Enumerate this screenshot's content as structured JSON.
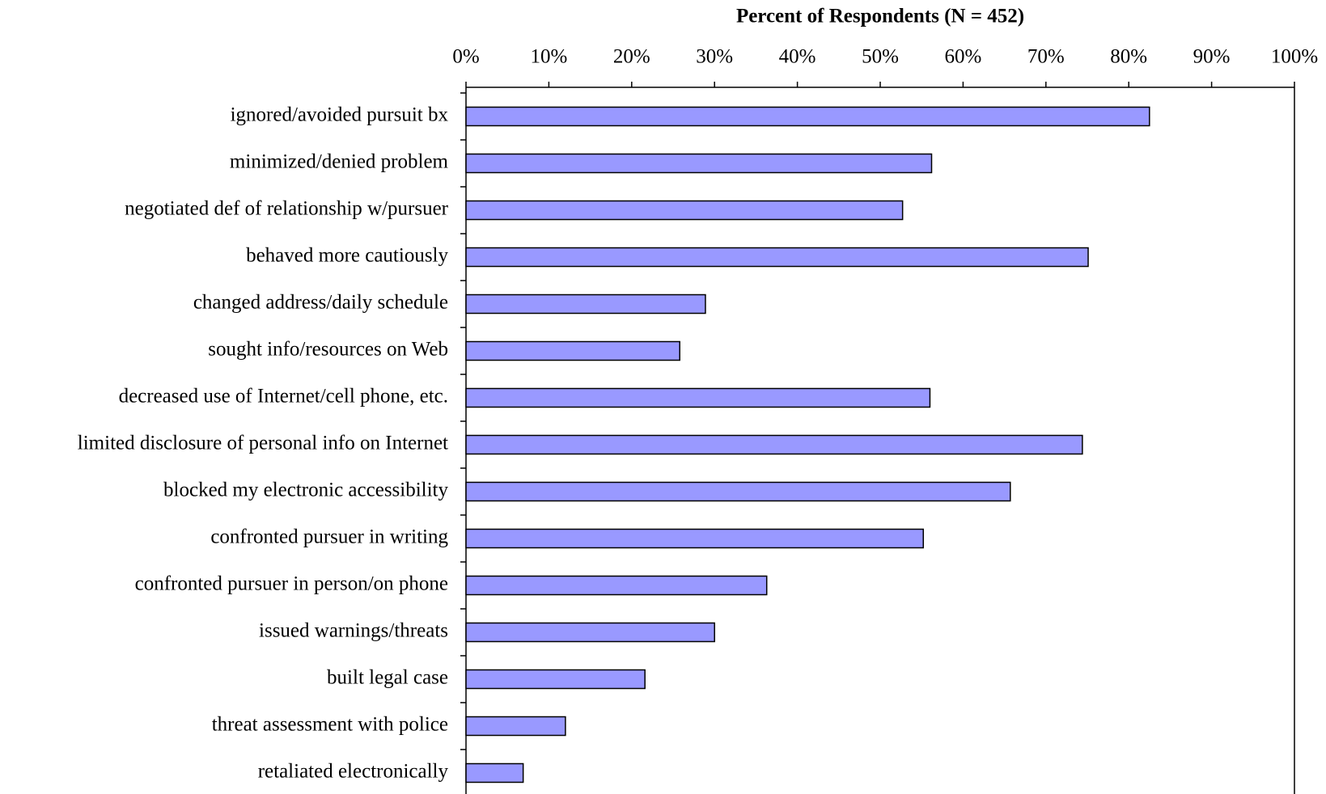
{
  "chart_data": {
    "type": "bar",
    "orientation": "horizontal",
    "title": "Percent of Respondents (N = 452)",
    "categories": [
      "ignored/avoided pursuit bx",
      "minimized/denied problem",
      "negotiated def of relationship w/pursuer",
      "behaved more cautiously",
      "changed address/daily schedule",
      "sought info/resources on Web",
      "decreased use of Internet/cell phone, etc.",
      "limited disclosure of personal info on Internet",
      "blocked my electronic accessibility",
      "confronted pursuer in writing",
      "confronted pursuer in person/on phone",
      "issued warnings/threats",
      "built legal case",
      "threat assessment with police",
      "retaliated electronically"
    ],
    "values": [
      82.5,
      56.2,
      52.7,
      75.1,
      28.9,
      25.8,
      56.0,
      74.4,
      65.7,
      55.2,
      36.3,
      30.0,
      21.6,
      12.0,
      6.9
    ],
    "color": "#9999ff",
    "xlim": [
      0,
      100
    ],
    "xticks": [
      {
        "value": 0,
        "label": "0%"
      },
      {
        "value": 10,
        "label": "10%"
      },
      {
        "value": 20,
        "label": "20%"
      },
      {
        "value": 30,
        "label": "30%"
      },
      {
        "value": 40,
        "label": "40%"
      },
      {
        "value": 50,
        "label": "50%"
      },
      {
        "value": 60,
        "label": "60%"
      },
      {
        "value": 70,
        "label": "70%"
      },
      {
        "value": 80,
        "label": "80%"
      },
      {
        "value": 90,
        "label": "90%"
      },
      {
        "value": 100,
        "label": "100%"
      }
    ],
    "grid": false
  }
}
